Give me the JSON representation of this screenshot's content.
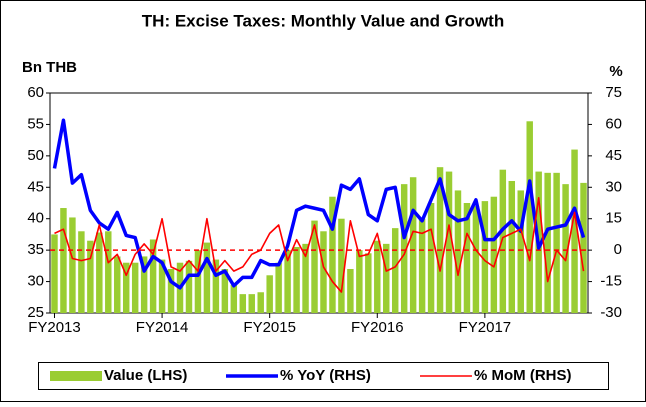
{
  "chart_data": {
    "type": "combo",
    "title": "TH: Excise Taxes: Monthly Value and Growth",
    "y_label": "Bn THB",
    "y2_label": "%",
    "categories": [
      "FY2013",
      null,
      null,
      null,
      null,
      null,
      null,
      null,
      null,
      null,
      null,
      null,
      "FY2014",
      null,
      null,
      null,
      null,
      null,
      null,
      null,
      null,
      null,
      null,
      null,
      "FY2015",
      null,
      null,
      null,
      null,
      null,
      null,
      null,
      null,
      null,
      null,
      null,
      "FY2016",
      null,
      null,
      null,
      null,
      null,
      null,
      null,
      null,
      null,
      null,
      null,
      "FY2017",
      null,
      null,
      null,
      null,
      null,
      null,
      null,
      null,
      null,
      null,
      null
    ],
    "series": [
      {
        "name": "Value (LHS)",
        "kind": "bar",
        "color": "#9acd32",
        "values": [
          37.5,
          41.7,
          40.2,
          38,
          36.5,
          37.8,
          38,
          34,
          33,
          33,
          34,
          36.7,
          33.5,
          32,
          33,
          33.3,
          35,
          36.2,
          33.5,
          32,
          29.5,
          28,
          28,
          28.3,
          31,
          33,
          35,
          35.5,
          36,
          39.7,
          38,
          43.5,
          40,
          32,
          35,
          34.5,
          36.5,
          36,
          38.5,
          45.5,
          46.6,
          40,
          42.5,
          48.2,
          47.5,
          44.5,
          42.5,
          42,
          42.8,
          43.5,
          47.8,
          46,
          44.5,
          55.5,
          47.5,
          47.3,
          47.3,
          45.5,
          51,
          45.7
        ]
      },
      {
        "name": "% YoY (RHS)",
        "kind": "line",
        "axis": "y2",
        "color": "#0000ff",
        "values": [
          39,
          62,
          32,
          36,
          19,
          13,
          10,
          18,
          7,
          6,
          -10,
          -3,
          -6,
          -15,
          -18,
          -12,
          -12,
          -4,
          -12,
          -10,
          -17,
          -13,
          -13,
          -5,
          -7,
          -7,
          2,
          19,
          21,
          20,
          19,
          10,
          31,
          29,
          34,
          17,
          14,
          29,
          30,
          6,
          19,
          14,
          24,
          34,
          17,
          14,
          15,
          24,
          5,
          5,
          10,
          14,
          9,
          33,
          1,
          10,
          11,
          12,
          20,
          6
        ]
      },
      {
        "name": "% MoM (RHS)",
        "kind": "line",
        "axis": "y2",
        "color": "#ff0000",
        "values": [
          8,
          10,
          -4,
          -5,
          -4,
          12,
          -6,
          -2,
          -12,
          -2,
          3,
          -2,
          15,
          -8,
          -10,
          -5,
          -10,
          15,
          -10,
          -5,
          -10,
          -8,
          -2,
          0,
          8,
          12,
          -5,
          5,
          -3,
          12,
          -8,
          -15,
          -20,
          14,
          -3,
          -2,
          8,
          -10,
          -8,
          -2,
          9,
          8,
          10,
          -10,
          12,
          -12,
          8,
          0,
          -5,
          -8,
          6,
          8,
          10,
          -5,
          25,
          -15,
          0,
          -5,
          18,
          -10
        ]
      }
    ],
    "ylim": [
      25,
      60
    ],
    "yticks": [
      25,
      30,
      35,
      40,
      45,
      50,
      55,
      60
    ],
    "y2lim": [
      -30,
      75
    ],
    "y2ticks": [
      -30,
      -15,
      0,
      15,
      30,
      45,
      60,
      75
    ],
    "y2_ref_line": 0,
    "legend": "bottom"
  }
}
